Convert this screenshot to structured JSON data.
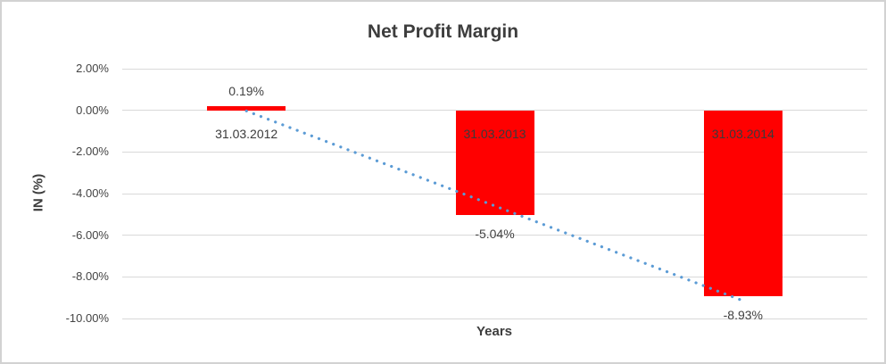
{
  "chart_data": {
    "type": "bar",
    "title": "Net Profit Margin",
    "xlabel": "Years",
    "ylabel": "IN (%)",
    "categories": [
      "31.03.2012",
      "31.03.2013",
      "31.03.2014"
    ],
    "values": [
      0.19,
      -5.04,
      -8.93
    ],
    "value_labels": [
      "0.19%",
      "-5.04%",
      "-8.93%"
    ],
    "ylim": [
      -10,
      2
    ],
    "yticks": [
      {
        "value": 2,
        "label": "2.00%"
      },
      {
        "value": 0,
        "label": "0.00%"
      },
      {
        "value": -2,
        "label": "-2.00%"
      },
      {
        "value": -4,
        "label": "-4.00%"
      },
      {
        "value": -6,
        "label": "-6.00%"
      },
      {
        "value": -8,
        "label": "-8.00%"
      },
      {
        "value": -10,
        "label": "-10.00%"
      }
    ],
    "grid": true,
    "gridline_color": "#d9d9d9",
    "bar_color": "#ff0000",
    "legend_position": "none",
    "trendline": {
      "type": "linear",
      "style": "dotted",
      "color": "#5b9bd5",
      "start_value": -0.03,
      "end_value": -9.15
    }
  }
}
